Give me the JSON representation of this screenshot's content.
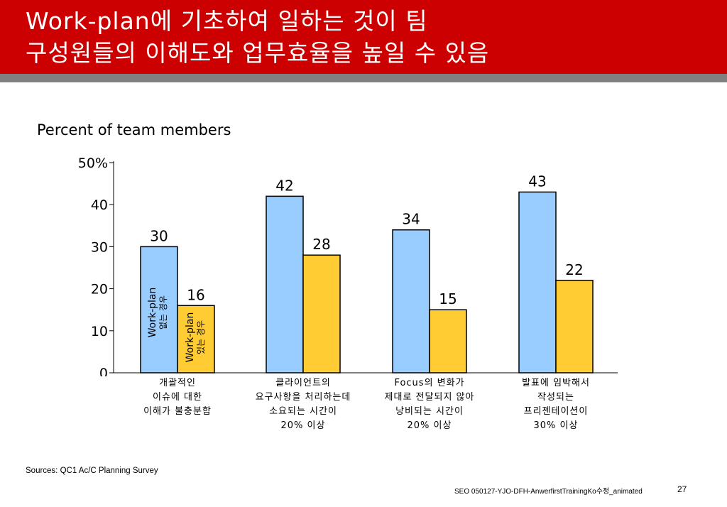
{
  "slide": {
    "title_line1": "Work-plan에 기초하여 일하는 것이 팀",
    "title_line2": "구성원들의 이해도와 업무효율을 높일 수 있음",
    "subtitle": "Percent of team members",
    "sources": "Sources:  QC1 Ac/C Planning Survey",
    "footer_ref": "SEO   050127-YJO-DFH-AnwerfirstTrainingKo수정_animated",
    "page_number": "27"
  },
  "colors": {
    "header_red": "#cc0000",
    "header_stripe": "#808080",
    "series_with_plan": "#99ccff",
    "series_without_plan": "#ffcc33"
  },
  "chart_data": {
    "type": "bar",
    "y_tick_labels": [
      "50%",
      "40",
      "30",
      "20",
      "10",
      "0"
    ],
    "ylim": [
      0,
      50
    ],
    "categories": [
      [
        "개괄적인",
        "이슈에 대한",
        "이해가 불충분함"
      ],
      [
        "클라이언트의",
        "요구사항을 처리하는데",
        "소요되는 시간이",
        "20% 이상"
      ],
      [
        "Focus의 변화가",
        "제대로 전달되지 않아",
        "낭비되는 시간이",
        "20% 이상"
      ],
      [
        "발표에 임박해서",
        "작성되는",
        "프리젠테이션이",
        "30% 이상"
      ]
    ],
    "series": [
      {
        "name": "Work-plan 있는 경우",
        "values": [
          30,
          42,
          34,
          43
        ]
      },
      {
        "name": "Work-plan 없는 경우",
        "values": [
          16,
          28,
          15,
          22
        ]
      }
    ],
    "series_label_lines": [
      [
        "Work-plan",
        "없는 경우"
      ],
      [
        "Work-plan",
        "있는 경우"
      ]
    ]
  }
}
